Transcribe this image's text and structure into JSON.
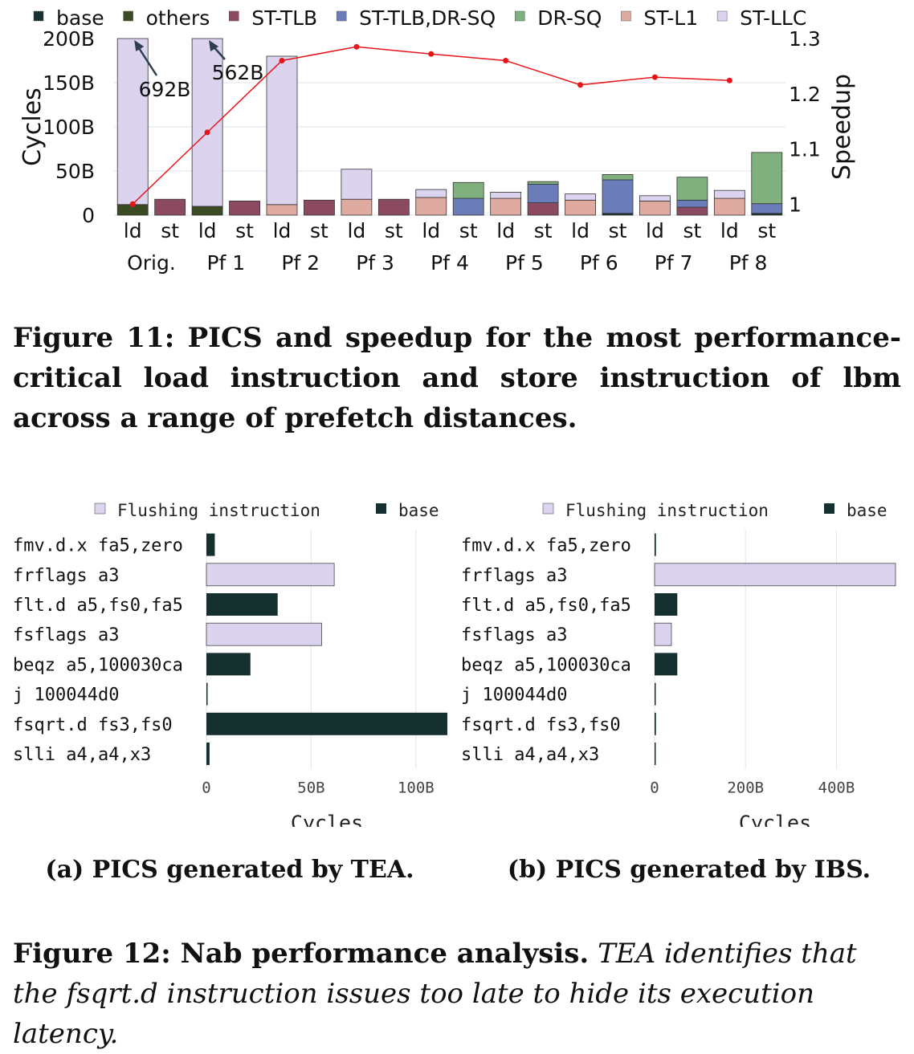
{
  "figure11": {
    "caption": "Figure 11: PICS and speedup for the most performance-critical load instruction and store instruction of lbm across a range of prefetch distances.",
    "chart_data": {
      "type": "bar",
      "stacked": true,
      "ylabel": "Cycles",
      "y2label": "Speedup",
      "ylim": [
        0,
        200
      ],
      "y2lim": [
        0.98,
        1.3
      ],
      "y_ticks": [
        "0",
        "50B",
        "100B",
        "150B",
        "200B"
      ],
      "y2_ticks": [
        "1",
        "1.1",
        "1.2",
        "1.3"
      ],
      "groups": [
        "Orig.",
        "Pf 1",
        "Pf 2",
        "Pf 3",
        "Pf 4",
        "Pf 5",
        "Pf 6",
        "Pf 7",
        "Pf 8"
      ],
      "sub_labels": [
        "ld",
        "st"
      ],
      "legend": [
        {
          "name": "base",
          "color": "#1a3035"
        },
        {
          "name": "others",
          "color": "#3a4a22"
        },
        {
          "name": "ST-TLB",
          "color": "#8c4a60"
        },
        {
          "name": "ST-TLB,DR-SQ",
          "color": "#6a7db8"
        },
        {
          "name": "DR-SQ",
          "color": "#7fb07e"
        },
        {
          "name": "ST-L1",
          "color": "#dfaaa0"
        },
        {
          "name": "ST-LLC",
          "color": "#dcd3ef"
        }
      ],
      "bars": [
        {
          "segments": [
            {
              "c": "others",
              "v": 12
            },
            {
              "c": "ST-LLC",
              "v": 680
            }
          ]
        },
        {
          "segments": [
            {
              "c": "ST-TLB",
              "v": 18
            }
          ]
        },
        {
          "segments": [
            {
              "c": "others",
              "v": 10
            },
            {
              "c": "ST-LLC",
              "v": 552
            }
          ]
        },
        {
          "segments": [
            {
              "c": "ST-TLB",
              "v": 16
            }
          ]
        },
        {
          "segments": [
            {
              "c": "ST-L1",
              "v": 12
            },
            {
              "c": "ST-LLC",
              "v": 168
            }
          ]
        },
        {
          "segments": [
            {
              "c": "ST-TLB",
              "v": 17
            }
          ]
        },
        {
          "segments": [
            {
              "c": "ST-L1",
              "v": 18
            },
            {
              "c": "ST-LLC",
              "v": 34
            }
          ]
        },
        {
          "segments": [
            {
              "c": "ST-TLB",
              "v": 18
            }
          ]
        },
        {
          "segments": [
            {
              "c": "ST-L1",
              "v": 20
            },
            {
              "c": "ST-LLC",
              "v": 9
            }
          ]
        },
        {
          "segments": [
            {
              "c": "ST-TLB,DR-SQ",
              "v": 19
            },
            {
              "c": "DR-SQ",
              "v": 18
            }
          ]
        },
        {
          "segments": [
            {
              "c": "ST-L1",
              "v": 19
            },
            {
              "c": "ST-LLC",
              "v": 7
            }
          ]
        },
        {
          "segments": [
            {
              "c": "ST-TLB",
              "v": 14
            },
            {
              "c": "ST-TLB,DR-SQ",
              "v": 21
            },
            {
              "c": "DR-SQ",
              "v": 3
            }
          ]
        },
        {
          "segments": [
            {
              "c": "ST-L1",
              "v": 17
            },
            {
              "c": "ST-LLC",
              "v": 7
            }
          ]
        },
        {
          "segments": [
            {
              "c": "base",
              "v": 2
            },
            {
              "c": "ST-TLB,DR-SQ",
              "v": 38
            },
            {
              "c": "DR-SQ",
              "v": 6
            }
          ]
        },
        {
          "segments": [
            {
              "c": "ST-L1",
              "v": 16
            },
            {
              "c": "ST-LLC",
              "v": 6
            }
          ]
        },
        {
          "segments": [
            {
              "c": "ST-TLB",
              "v": 9
            },
            {
              "c": "ST-TLB,DR-SQ",
              "v": 8
            },
            {
              "c": "DR-SQ",
              "v": 26
            }
          ]
        },
        {
          "segments": [
            {
              "c": "ST-L1",
              "v": 19
            },
            {
              "c": "ST-LLC",
              "v": 9
            }
          ]
        },
        {
          "segments": [
            {
              "c": "base",
              "v": 2
            },
            {
              "c": "ST-TLB,DR-SQ",
              "v": 11
            },
            {
              "c": "DR-SQ",
              "v": 58
            }
          ]
        }
      ],
      "clipped_labels": [
        {
          "bar": 0,
          "text": "692B"
        },
        {
          "bar": 2,
          "text": "562B"
        }
      ],
      "speedup": [
        1.0,
        1.13,
        1.26,
        1.285,
        1.272,
        1.26,
        1.216,
        1.23,
        1.224
      ]
    }
  },
  "figure12": {
    "caption_label": "Figure 12: Nab performance analysis.",
    "caption_text": "TEA identifies that the fsqrt.d instruction issues too late to hide its execution latency.",
    "subfigures": [
      {
        "caption": "(a) PICS generated by TEA.",
        "chart_data": {
          "type": "bar",
          "orientation": "horizontal",
          "xlabel": "Cycles",
          "xlim": [
            0,
            115
          ],
          "x_ticks": [
            {
              "v": 0,
              "t": "0"
            },
            {
              "v": 50,
              "t": "50B"
            },
            {
              "v": 100,
              "t": "100B"
            }
          ],
          "legend": [
            {
              "name": "Flushing instruction",
              "color": "#dcd3ef"
            },
            {
              "name": "base",
              "color": "#16302f"
            }
          ],
          "categories": [
            "fmv.d.x fa5,zero",
            "frflags a3",
            "flt.d a5,fs0,fa5",
            "fsflags a3",
            "beqz a5,100030ca",
            "j 100044d0",
            "fsqrt.d fs3,fs0",
            "slli a4,a4,x3"
          ],
          "series": [
            {
              "name": "Flushing instruction",
              "values": [
                0,
                61,
                0,
                55,
                0,
                0,
                0,
                0
              ]
            },
            {
              "name": "base",
              "values": [
                4,
                0,
                34,
                0,
                21,
                0.5,
                115,
                1.5
              ]
            }
          ]
        }
      },
      {
        "caption": "(b) PICS generated by IBS.",
        "chart_data": {
          "type": "bar",
          "orientation": "horizontal",
          "xlabel": "Cycles",
          "xlim": [
            0,
            530
          ],
          "x_ticks": [
            {
              "v": 0,
              "t": "0"
            },
            {
              "v": 200,
              "t": "200B"
            },
            {
              "v": 400,
              "t": "400B"
            }
          ],
          "legend": [
            {
              "name": "Flushing instruction",
              "color": "#dcd3ef"
            },
            {
              "name": "base",
              "color": "#16302f"
            }
          ],
          "categories": [
            "fmv.d.x fa5,zero",
            "frflags a3",
            "flt.d a5,fs0,fa5",
            "fsflags a3",
            "beqz a5,100030ca",
            "j 100044d0",
            "fsqrt.d fs3,fs0",
            "slli a4,a4,x3"
          ],
          "series": [
            {
              "name": "Flushing instruction",
              "values": [
                0,
                530,
                0,
                37,
                0,
                0,
                0,
                0
              ]
            },
            {
              "name": "base",
              "values": [
                3,
                0,
                50,
                0,
                50,
                1,
                3,
                1
              ]
            }
          ]
        }
      }
    ]
  }
}
